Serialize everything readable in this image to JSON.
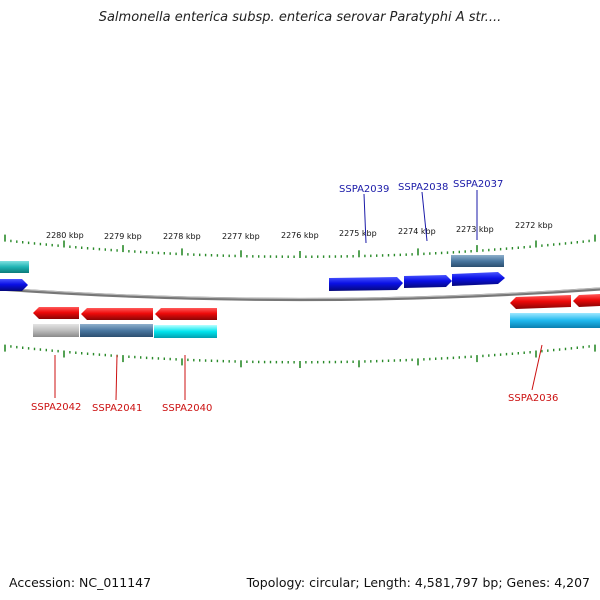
{
  "title": "Salmonella enterica subsp. enterica serovar Paratyphi A str....",
  "scale_labels": [
    "2280 kbp",
    "2279 kbp",
    "2278 kbp",
    "2277 kbp",
    "2276 kbp",
    "2275 kbp",
    "2274 kbp",
    "2273 kbp",
    "2272 kbp"
  ],
  "genes_top": [
    {
      "label": "SSPA2039"
    },
    {
      "label": "SSPA2038"
    },
    {
      "label": "SSPA2037"
    }
  ],
  "genes_bottom": [
    {
      "label": "SSPA2042"
    },
    {
      "label": "SSPA2041"
    },
    {
      "label": "SSPA2040"
    },
    {
      "label": "SSPA2036"
    }
  ],
  "colors": {
    "forward_gene": "#0a10e6",
    "reverse_gene": "#ee0a0a",
    "label_top": "#1a1aa8",
    "label_bottom": "#cc1111",
    "tick": "#2a8a2a",
    "backbone": "#777777"
  },
  "footer": {
    "accession": "Accession: NC_011147",
    "summary": "Topology: circular; Length: 4,581,797 bp; Genes: 4,207"
  }
}
